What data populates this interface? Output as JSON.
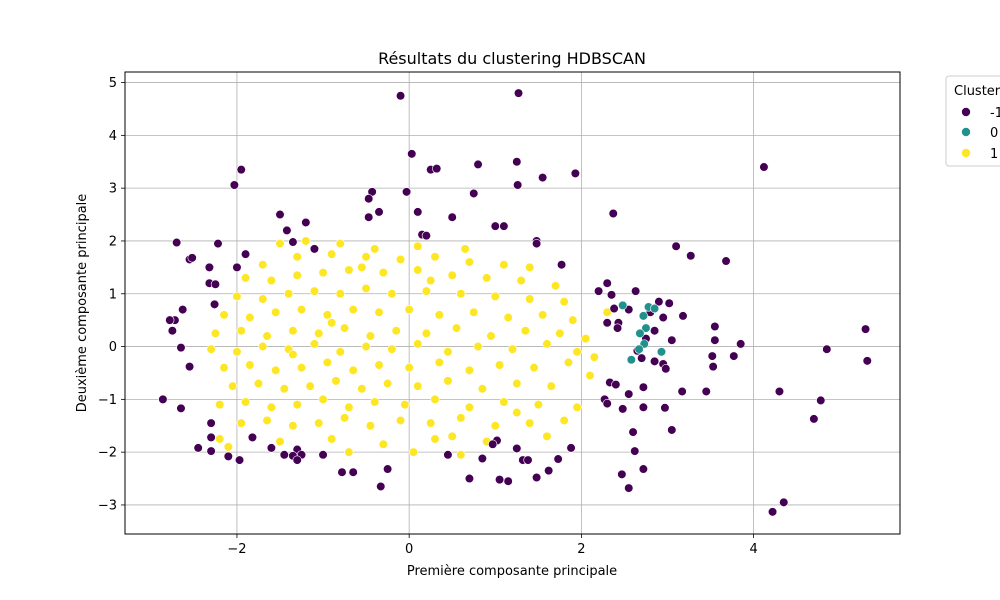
{
  "chart_data": {
    "type": "scatter",
    "title": "Résultats du clustering HDBSCAN",
    "xlabel": "Première composante principale",
    "ylabel": "Deuxième composante principale",
    "xlim": [
      -3.3,
      5.7
    ],
    "ylim": [
      -3.55,
      5.2
    ],
    "xticks": [
      -2,
      0,
      2,
      4
    ],
    "yticks": [
      -3,
      -2,
      -1,
      0,
      1,
      2,
      3,
      4,
      5
    ],
    "grid": true,
    "legend": {
      "title": "Cluster",
      "placement": "upper-right-outside"
    },
    "series": [
      {
        "name": "-1",
        "color": "#440154",
        "points": [
          [
            -0.1,
            4.75
          ],
          [
            1.27,
            4.8
          ],
          [
            0.03,
            3.65
          ],
          [
            -1.95,
            3.35
          ],
          [
            -2.03,
            3.06
          ],
          [
            0.8,
            3.45
          ],
          [
            0.25,
            3.35
          ],
          [
            0.32,
            3.37
          ],
          [
            1.25,
            3.5
          ],
          [
            1.55,
            3.2
          ],
          [
            1.93,
            3.28
          ],
          [
            1.26,
            3.06
          ],
          [
            0.75,
            2.9
          ],
          [
            -0.43,
            2.93
          ],
          [
            -0.47,
            2.8
          ],
          [
            -0.03,
            2.93
          ],
          [
            -1.5,
            2.5
          ],
          [
            -1.42,
            2.2
          ],
          [
            -0.47,
            2.45
          ],
          [
            -0.35,
            2.55
          ],
          [
            0.1,
            2.55
          ],
          [
            0.5,
            2.45
          ],
          [
            -1.2,
            2.35
          ],
          [
            1.0,
            2.28
          ],
          [
            1.1,
            2.28
          ],
          [
            2.37,
            2.52
          ],
          [
            0.15,
            2.12
          ],
          [
            0.2,
            2.1
          ],
          [
            -1.35,
            1.98
          ],
          [
            -2.7,
            1.97
          ],
          [
            -2.22,
            1.95
          ],
          [
            1.48,
            2.0
          ],
          [
            1.48,
            1.95
          ],
          [
            -1.1,
            1.85
          ],
          [
            -1.9,
            1.75
          ],
          [
            -2.55,
            1.65
          ],
          [
            -2.52,
            1.68
          ],
          [
            -2.32,
            1.5
          ],
          [
            -2.0,
            1.5
          ],
          [
            1.77,
            1.55
          ],
          [
            3.1,
            1.9
          ],
          [
            3.27,
            1.72
          ],
          [
            3.68,
            1.62
          ],
          [
            -2.32,
            1.2
          ],
          [
            -2.25,
            1.18
          ],
          [
            2.3,
            1.2
          ],
          [
            2.63,
            1.05
          ],
          [
            2.2,
            1.05
          ],
          [
            2.35,
            0.98
          ],
          [
            -2.26,
            0.8
          ],
          [
            -2.63,
            0.7
          ],
          [
            2.9,
            0.85
          ],
          [
            3.02,
            0.82
          ],
          [
            2.38,
            0.72
          ],
          [
            2.55,
            0.7
          ],
          [
            2.8,
            0.65
          ],
          [
            -2.72,
            0.5
          ],
          [
            -2.78,
            0.5
          ],
          [
            3.18,
            0.58
          ],
          [
            2.95,
            0.55
          ],
          [
            2.3,
            0.45
          ],
          [
            2.43,
            0.45
          ],
          [
            2.42,
            0.35
          ],
          [
            3.55,
            0.38
          ],
          [
            -2.75,
            0.3
          ],
          [
            5.3,
            0.33
          ],
          [
            2.85,
            0.3
          ],
          [
            2.75,
            0.15
          ],
          [
            3.05,
            0.12
          ],
          [
            3.55,
            0.12
          ],
          [
            3.85,
            0.05
          ],
          [
            -2.65,
            -0.02
          ],
          [
            4.85,
            -0.05
          ],
          [
            2.65,
            -0.08
          ],
          [
            3.52,
            -0.18
          ],
          [
            3.77,
            -0.18
          ],
          [
            2.7,
            -0.22
          ],
          [
            2.85,
            -0.28
          ],
          [
            2.95,
            -0.33
          ],
          [
            2.98,
            -0.42
          ],
          [
            3.53,
            -0.38
          ],
          [
            5.32,
            -0.27
          ],
          [
            -2.55,
            -0.38
          ],
          [
            2.72,
            -0.77
          ],
          [
            2.33,
            -0.68
          ],
          [
            2.4,
            -0.72
          ],
          [
            3.17,
            -0.85
          ],
          [
            3.45,
            -0.85
          ],
          [
            4.3,
            -0.85
          ],
          [
            2.55,
            -0.9
          ],
          [
            -2.86,
            -1.0
          ],
          [
            4.78,
            -1.02
          ],
          [
            2.27,
            -1.0
          ],
          [
            2.3,
            -1.08
          ],
          [
            2.48,
            -1.18
          ],
          [
            2.72,
            -1.15
          ],
          [
            2.97,
            -1.16
          ],
          [
            -2.65,
            -1.17
          ],
          [
            4.7,
            -1.37
          ],
          [
            -2.3,
            -1.45
          ],
          [
            2.6,
            -1.62
          ],
          [
            3.05,
            -1.58
          ],
          [
            -2.3,
            -1.72
          ],
          [
            -1.82,
            -1.72
          ],
          [
            1.02,
            -1.78
          ],
          [
            0.97,
            -1.85
          ],
          [
            -2.45,
            -1.92
          ],
          [
            -2.3,
            -1.98
          ],
          [
            -1.6,
            -1.92
          ],
          [
            -1.3,
            -1.95
          ],
          [
            -1.35,
            -2.07
          ],
          [
            -1.25,
            -2.05
          ],
          [
            -1.45,
            -2.05
          ],
          [
            -1.0,
            -2.05
          ],
          [
            0.45,
            -2.05
          ],
          [
            1.25,
            -1.93
          ],
          [
            1.88,
            -1.92
          ],
          [
            2.62,
            -1.98
          ],
          [
            -2.1,
            -2.08
          ],
          [
            -1.97,
            -2.15
          ],
          [
            -1.3,
            -2.15
          ],
          [
            0.85,
            -2.12
          ],
          [
            1.32,
            -2.15
          ],
          [
            1.38,
            -2.15
          ],
          [
            1.73,
            -2.13
          ],
          [
            -0.25,
            -2.32
          ],
          [
            1.62,
            -2.35
          ],
          [
            -0.78,
            -2.38
          ],
          [
            -0.65,
            -2.38
          ],
          [
            2.72,
            -2.32
          ],
          [
            0.7,
            -2.5
          ],
          [
            1.05,
            -2.52
          ],
          [
            1.15,
            -2.55
          ],
          [
            1.48,
            -2.48
          ],
          [
            2.47,
            -2.42
          ],
          [
            -0.33,
            -2.65
          ],
          [
            2.55,
            -2.68
          ],
          [
            4.35,
            -2.95
          ],
          [
            4.22,
            -3.13
          ],
          [
            4.12,
            3.4
          ]
        ]
      },
      {
        "name": "0",
        "color": "#21918c",
        "points": [
          [
            2.48,
            0.78
          ],
          [
            2.78,
            0.75
          ],
          [
            2.85,
            0.72
          ],
          [
            2.72,
            0.58
          ],
          [
            2.75,
            0.35
          ],
          [
            2.68,
            0.25
          ],
          [
            2.73,
            0.05
          ],
          [
            2.67,
            -0.05
          ],
          [
            2.93,
            -0.1
          ],
          [
            2.58,
            -0.25
          ]
        ]
      },
      {
        "name": "1",
        "color": "#fde725",
        "points": [
          [
            -1.5,
            1.95
          ],
          [
            -1.2,
            2.0
          ],
          [
            -0.8,
            1.95
          ],
          [
            -0.4,
            1.85
          ],
          [
            0.1,
            1.9
          ],
          [
            0.65,
            1.85
          ],
          [
            -1.7,
            1.55
          ],
          [
            -1.3,
            1.7
          ],
          [
            -0.9,
            1.75
          ],
          [
            -0.5,
            1.7
          ],
          [
            -0.1,
            1.65
          ],
          [
            0.3,
            1.7
          ],
          [
            0.7,
            1.6
          ],
          [
            1.1,
            1.55
          ],
          [
            1.4,
            1.5
          ],
          [
            -1.9,
            1.3
          ],
          [
            -1.6,
            1.25
          ],
          [
            -1.3,
            1.35
          ],
          [
            -1.0,
            1.4
          ],
          [
            -0.7,
            1.45
          ],
          [
            -0.3,
            1.4
          ],
          [
            0.1,
            1.45
          ],
          [
            0.5,
            1.35
          ],
          [
            0.9,
            1.3
          ],
          [
            1.3,
            1.25
          ],
          [
            1.7,
            1.15
          ],
          [
            -2.0,
            0.95
          ],
          [
            -1.7,
            0.9
          ],
          [
            -1.4,
            1.0
          ],
          [
            -1.1,
            1.05
          ],
          [
            -0.8,
            1.0
          ],
          [
            -0.5,
            1.1
          ],
          [
            -0.2,
            1.0
          ],
          [
            0.2,
            1.05
          ],
          [
            0.6,
            1.0
          ],
          [
            1.0,
            0.95
          ],
          [
            1.4,
            0.9
          ],
          [
            1.8,
            0.85
          ],
          [
            -2.15,
            0.6
          ],
          [
            -1.85,
            0.55
          ],
          [
            -1.55,
            0.65
          ],
          [
            -1.25,
            0.7
          ],
          [
            -0.95,
            0.6
          ],
          [
            -0.65,
            0.7
          ],
          [
            -0.35,
            0.65
          ],
          [
            0.0,
            0.7
          ],
          [
            0.35,
            0.6
          ],
          [
            0.75,
            0.65
          ],
          [
            1.15,
            0.55
          ],
          [
            1.55,
            0.6
          ],
          [
            1.9,
            0.5
          ],
          [
            -2.25,
            0.25
          ],
          [
            -1.95,
            0.3
          ],
          [
            -1.65,
            0.2
          ],
          [
            -1.35,
            0.3
          ],
          [
            -1.05,
            0.25
          ],
          [
            -0.75,
            0.35
          ],
          [
            -0.45,
            0.2
          ],
          [
            -0.15,
            0.3
          ],
          [
            0.2,
            0.25
          ],
          [
            0.55,
            0.35
          ],
          [
            0.95,
            0.2
          ],
          [
            1.35,
            0.3
          ],
          [
            1.75,
            0.25
          ],
          [
            2.05,
            0.15
          ],
          [
            -2.3,
            -0.05
          ],
          [
            -2.0,
            -0.1
          ],
          [
            -1.7,
            0.0
          ],
          [
            -1.4,
            -0.05
          ],
          [
            -1.1,
            0.05
          ],
          [
            -0.8,
            -0.1
          ],
          [
            -0.5,
            0.0
          ],
          [
            -0.2,
            -0.05
          ],
          [
            0.1,
            0.05
          ],
          [
            0.45,
            -0.1
          ],
          [
            0.8,
            0.0
          ],
          [
            1.2,
            -0.05
          ],
          [
            1.6,
            0.05
          ],
          [
            1.95,
            -0.1
          ],
          [
            -2.15,
            -0.4
          ],
          [
            -1.85,
            -0.35
          ],
          [
            -1.55,
            -0.45
          ],
          [
            -1.25,
            -0.4
          ],
          [
            -0.95,
            -0.3
          ],
          [
            -0.65,
            -0.45
          ],
          [
            -0.35,
            -0.35
          ],
          [
            0.0,
            -0.4
          ],
          [
            0.35,
            -0.3
          ],
          [
            0.7,
            -0.45
          ],
          [
            1.05,
            -0.35
          ],
          [
            1.45,
            -0.4
          ],
          [
            1.85,
            -0.3
          ],
          [
            -2.05,
            -0.75
          ],
          [
            -1.75,
            -0.7
          ],
          [
            -1.45,
            -0.8
          ],
          [
            -1.15,
            -0.75
          ],
          [
            -0.85,
            -0.65
          ],
          [
            -0.55,
            -0.8
          ],
          [
            -0.25,
            -0.7
          ],
          [
            0.1,
            -0.75
          ],
          [
            0.45,
            -0.65
          ],
          [
            0.85,
            -0.8
          ],
          [
            1.25,
            -0.7
          ],
          [
            1.65,
            -0.75
          ],
          [
            -2.2,
            -1.1
          ],
          [
            -1.9,
            -1.05
          ],
          [
            -1.6,
            -1.15
          ],
          [
            -1.3,
            -1.1
          ],
          [
            -1.0,
            -1.0
          ],
          [
            -0.7,
            -1.15
          ],
          [
            -0.4,
            -1.05
          ],
          [
            -0.05,
            -1.1
          ],
          [
            0.3,
            -1.0
          ],
          [
            0.7,
            -1.15
          ],
          [
            1.1,
            -1.05
          ],
          [
            1.5,
            -1.1
          ],
          [
            1.95,
            -1.15
          ],
          [
            -1.95,
            -1.45
          ],
          [
            -1.65,
            -1.4
          ],
          [
            -1.35,
            -1.5
          ],
          [
            -1.05,
            -1.45
          ],
          [
            -0.75,
            -1.35
          ],
          [
            -0.45,
            -1.5
          ],
          [
            -0.1,
            -1.4
          ],
          [
            0.25,
            -1.45
          ],
          [
            0.6,
            -1.35
          ],
          [
            1.0,
            -1.5
          ],
          [
            1.4,
            -1.45
          ],
          [
            1.8,
            -1.4
          ],
          [
            -2.2,
            -1.75
          ],
          [
            -1.5,
            -1.8
          ],
          [
            -0.9,
            -1.75
          ],
          [
            -0.3,
            -1.85
          ],
          [
            0.3,
            -1.75
          ],
          [
            0.9,
            -1.8
          ],
          [
            1.6,
            -1.7
          ],
          [
            -0.7,
            -2.0
          ],
          [
            0.05,
            -2.0
          ],
          [
            0.6,
            -2.05
          ],
          [
            -2.1,
            -1.9
          ],
          [
            2.3,
            0.65
          ],
          [
            2.15,
            -0.2
          ],
          [
            2.1,
            -0.55
          ],
          [
            -1.35,
            -0.15
          ],
          [
            -0.9,
            0.45
          ],
          [
            0.25,
            1.25
          ],
          [
            -0.55,
            1.5
          ],
          [
            1.25,
            -1.25
          ],
          [
            0.5,
            -1.7
          ]
        ]
      }
    ]
  }
}
